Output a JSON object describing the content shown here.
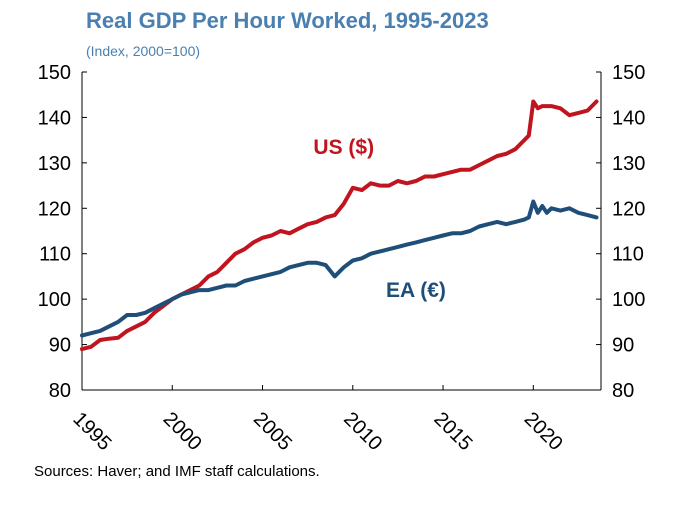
{
  "title": "Real GDP Per Hour Worked, 1995-2023",
  "subtitle": "(Index, 2000=100)",
  "source": "Sources: Haver; and IMF staff calculations.",
  "colors": {
    "us": "#c0151f",
    "ea": "#1f4e79",
    "title": "#4a7fb0"
  },
  "chart_data": {
    "type": "line",
    "title": "Real GDP Per Hour Worked, 1995-2023",
    "subtitle": "(Index, 2000=100)",
    "xlabel": "",
    "ylabel": "",
    "xlim": [
      1995,
      2023.75
    ],
    "ylim": [
      80,
      150
    ],
    "x_ticks": [
      1995,
      2000,
      2005,
      2010,
      2015,
      2020
    ],
    "x_tick_labels": [
      "1995",
      "2000",
      "2005",
      "2010",
      "2015",
      "2020"
    ],
    "y_ticks": [
      80,
      90,
      100,
      110,
      120,
      130,
      140,
      150
    ],
    "y_tick_labels": [
      "80",
      "90",
      "100",
      "110",
      "120",
      "130",
      "140",
      "150"
    ],
    "secondary_y_axis": true,
    "grid": false,
    "legend": "inline labels",
    "series": [
      {
        "name": "US ($)",
        "color": "#c0151f",
        "points": [
          [
            1995,
            89
          ],
          [
            1995.5,
            89.5
          ],
          [
            1996,
            91
          ],
          [
            1996.5,
            91.3
          ],
          [
            1997,
            91.5
          ],
          [
            1997.5,
            93
          ],
          [
            1998,
            94
          ],
          [
            1998.5,
            95
          ],
          [
            1999,
            97
          ],
          [
            1999.5,
            98.5
          ],
          [
            2000,
            100
          ],
          [
            2000.5,
            101
          ],
          [
            2001,
            102
          ],
          [
            2001.5,
            103
          ],
          [
            2002,
            105
          ],
          [
            2002.5,
            106
          ],
          [
            2003,
            108
          ],
          [
            2003.5,
            110
          ],
          [
            2004,
            111
          ],
          [
            2004.5,
            112.5
          ],
          [
            2005,
            113.5
          ],
          [
            2005.5,
            114
          ],
          [
            2006,
            115
          ],
          [
            2006.5,
            114.5
          ],
          [
            2007,
            115.5
          ],
          [
            2007.5,
            116.5
          ],
          [
            2008,
            117
          ],
          [
            2008.5,
            118
          ],
          [
            2009,
            118.5
          ],
          [
            2009.5,
            121
          ],
          [
            2010,
            124.5
          ],
          [
            2010.5,
            124
          ],
          [
            2011,
            125.5
          ],
          [
            2011.5,
            125
          ],
          [
            2012,
            125
          ],
          [
            2012.5,
            126
          ],
          [
            2013,
            125.5
          ],
          [
            2013.5,
            126
          ],
          [
            2014,
            127
          ],
          [
            2014.5,
            127
          ],
          [
            2015,
            127.5
          ],
          [
            2015.5,
            128
          ],
          [
            2016,
            128.5
          ],
          [
            2016.5,
            128.5
          ],
          [
            2017,
            129.5
          ],
          [
            2017.5,
            130.5
          ],
          [
            2018,
            131.5
          ],
          [
            2018.5,
            132
          ],
          [
            2019,
            133
          ],
          [
            2019.5,
            135
          ],
          [
            2019.75,
            136
          ],
          [
            2020,
            143.5
          ],
          [
            2020.25,
            142
          ],
          [
            2020.5,
            142.5
          ],
          [
            2021,
            142.5
          ],
          [
            2021.5,
            142
          ],
          [
            2022,
            140.5
          ],
          [
            2022.5,
            141
          ],
          [
            2023,
            141.5
          ],
          [
            2023.5,
            143.5
          ]
        ]
      },
      {
        "name": "EA (€)",
        "color": "#1f4e79",
        "points": [
          [
            1995,
            92
          ],
          [
            1995.5,
            92.5
          ],
          [
            1996,
            93
          ],
          [
            1996.5,
            94
          ],
          [
            1997,
            95
          ],
          [
            1997.5,
            96.5
          ],
          [
            1998,
            96.5
          ],
          [
            1998.5,
            97
          ],
          [
            1999,
            98
          ],
          [
            1999.5,
            99
          ],
          [
            2000,
            100
          ],
          [
            2000.5,
            101
          ],
          [
            2001,
            101.5
          ],
          [
            2001.5,
            102
          ],
          [
            2002,
            102
          ],
          [
            2002.5,
            102.5
          ],
          [
            2003,
            103
          ],
          [
            2003.5,
            103
          ],
          [
            2004,
            104
          ],
          [
            2004.5,
            104.5
          ],
          [
            2005,
            105
          ],
          [
            2005.5,
            105.5
          ],
          [
            2006,
            106
          ],
          [
            2006.5,
            107
          ],
          [
            2007,
            107.5
          ],
          [
            2007.5,
            108
          ],
          [
            2008,
            108
          ],
          [
            2008.5,
            107.5
          ],
          [
            2009,
            105
          ],
          [
            2009.5,
            107
          ],
          [
            2010,
            108.5
          ],
          [
            2010.5,
            109
          ],
          [
            2011,
            110
          ],
          [
            2011.5,
            110.5
          ],
          [
            2012,
            111
          ],
          [
            2012.5,
            111.5
          ],
          [
            2013,
            112
          ],
          [
            2013.5,
            112.5
          ],
          [
            2014,
            113
          ],
          [
            2014.5,
            113.5
          ],
          [
            2015,
            114
          ],
          [
            2015.5,
            114.5
          ],
          [
            2016,
            114.5
          ],
          [
            2016.5,
            115
          ],
          [
            2017,
            116
          ],
          [
            2017.5,
            116.5
          ],
          [
            2018,
            117
          ],
          [
            2018.5,
            116.5
          ],
          [
            2019,
            117
          ],
          [
            2019.5,
            117.5
          ],
          [
            2019.75,
            118
          ],
          [
            2020,
            121.5
          ],
          [
            2020.25,
            119
          ],
          [
            2020.5,
            120.5
          ],
          [
            2020.75,
            119
          ],
          [
            2021,
            120
          ],
          [
            2021.5,
            119.5
          ],
          [
            2022,
            120
          ],
          [
            2022.5,
            119
          ],
          [
            2023,
            118.5
          ],
          [
            2023.5,
            118
          ]
        ]
      }
    ],
    "annotations": [
      {
        "text": "US ($)",
        "series": "US ($)",
        "x": 2009.5,
        "y": 132
      },
      {
        "text": "EA (€)",
        "series": "EA (€)",
        "x": 2013.5,
        "y": 100.5
      }
    ]
  }
}
